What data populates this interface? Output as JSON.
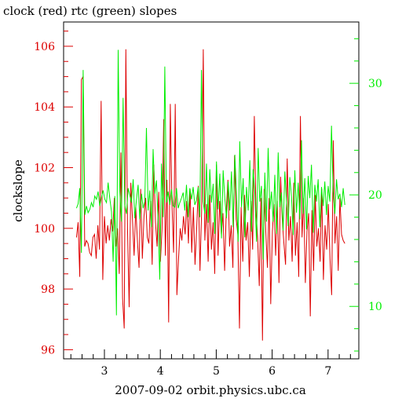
{
  "chart_data": {
    "type": "line",
    "title": "clock (red) rtc (green) slopes",
    "xlabel": "2007-09-02 orbit.physics.ubc.ca",
    "ylabel": "clockslope",
    "xlim": [
      2.27,
      7.55
    ],
    "ylim_left": [
      95.7,
      106.8
    ],
    "ylim_right": [
      5.3,
      35.5
    ],
    "x_ticks": [
      3,
      4,
      5,
      6,
      7
    ],
    "y_ticks_left": [
      96,
      98,
      100,
      102,
      104,
      106
    ],
    "y_ticks_right": [
      10,
      20,
      30
    ],
    "grid": false,
    "colors": {
      "clock": "#dd0000",
      "rtc": "#00ee00",
      "axes": "#000000"
    },
    "x_start": 2.5,
    "x_end": 7.3,
    "series": [
      {
        "axis": "left",
        "color": "#dd0000",
        "values": [
          99.7,
          100.2,
          98.4,
          104.9,
          105.0,
          99.4,
          99.6,
          99.5,
          99.2,
          99.1,
          99.7,
          99.8,
          99.0,
          100.1,
          99.3,
          104.2,
          98.3,
          100.4,
          99.5,
          100.1,
          99.6,
          100.3,
          99.9,
          101.0,
          99.4,
          100.0,
          98.5,
          102.5,
          97.7,
          96.7,
          105.9,
          100.0,
          97.4,
          101.5,
          100.3,
          99.1,
          100.7,
          99.6,
          98.7,
          101.3,
          99.0,
          100.4,
          101.0,
          99.7,
          99.5,
          100.9,
          98.8,
          102.1,
          100.2,
          99.4,
          101.2,
          98.9,
          100.0,
          103.6,
          99.1,
          101.6,
          96.9,
          104.1,
          100.8,
          99.2,
          104.1,
          97.8,
          99.0,
          100.0,
          99.6,
          100.4,
          99.8,
          100.9,
          99.5,
          101.3,
          99.2,
          100.7,
          98.8,
          100.0,
          101.4,
          98.6,
          100.6,
          105.9,
          99.6,
          100.8,
          98.9,
          101.1,
          99.3,
          100.2,
          98.5,
          102.1,
          99.1,
          100.9,
          99.8,
          100.5,
          98.6,
          100.6,
          101.6,
          99.4,
          100.1,
          98.7,
          102.4,
          100.3,
          99.8,
          96.7,
          100.7,
          98.9,
          101.1,
          99.6,
          100.2,
          98.4,
          100.9,
          99.3,
          103.7,
          100.6,
          99.7,
          98.1,
          101.0,
          96.3,
          101.3,
          99.9,
          98.7,
          101.0,
          97.5,
          99.9,
          100.8,
          99.1,
          100.9,
          98.2,
          101.7,
          100.3,
          99.5,
          98.8,
          102.3,
          99.6,
          100.4,
          98.9,
          101.5,
          99.1,
          100.2,
          98.4,
          103.7,
          99.7,
          101.0,
          98.2,
          99.9,
          100.5,
          97.1,
          100.6,
          98.6,
          101.1,
          99.4,
          100.0,
          98.9,
          101.3,
          98.3,
          100.1,
          99.3,
          100.8,
          99.0,
          97.8,
          102.9,
          99.5,
          100.4,
          98.6,
          101.0,
          99.8,
          99.6,
          99.5
        ],
        "note": "clock"
      },
      {
        "axis": "right",
        "color": "#00ee00",
        "values": [
          18.8,
          19.2,
          20.6,
          14.8,
          31.2,
          18.2,
          19.0,
          18.4,
          18.7,
          19.3,
          18.9,
          19.9,
          19.6,
          20.3,
          19.0,
          19.8,
          20.4,
          19.6,
          19.3,
          21.1,
          19.7,
          18.5,
          14.0,
          19.9,
          9.2,
          33.0,
          20.3,
          17.6,
          28.7,
          19.1,
          18.3,
          20.6,
          20.0,
          19.3,
          21.4,
          17.9,
          19.6,
          20.9,
          17.8,
          20.1,
          18.8,
          19.4,
          26.0,
          18.6,
          20.4,
          17.1,
          24.1,
          20.1,
          21.3,
          17.6,
          12.4,
          22.8,
          18.0,
          31.5,
          19.3,
          20.3,
          19.1,
          20.5,
          19.0,
          18.9,
          20.6,
          18.8,
          19.3,
          19.7,
          20.2,
          18.6,
          20.9,
          18.0,
          20.6,
          19.6,
          20.7,
          19.1,
          19.5,
          20.7,
          18.0,
          31.2,
          19.4,
          18.3,
          22.8,
          17.5,
          22.3,
          19.3,
          21.0,
          16.5,
          23.0,
          18.7,
          21.9,
          16.1,
          22.2,
          19.7,
          17.9,
          21.2,
          18.6,
          22.1,
          17.1,
          23.6,
          19.9,
          15.8,
          24.8,
          18.9,
          21.5,
          16.2,
          20.7,
          18.6,
          23.1,
          16.7,
          22.3,
          20.2,
          15.8,
          24.2,
          19.4,
          20.8,
          14.2,
          22.0,
          17.6,
          24.2,
          18.7,
          20.3,
          17.6,
          21.8,
          16.5,
          23.8,
          18.9,
          20.2,
          16.8,
          22.1,
          19.4,
          17.2,
          21.6,
          19.8,
          16.4,
          22.2,
          18.4,
          21.1,
          17.8,
          24.9,
          18.3,
          21.5,
          16.9,
          21.7,
          19.7,
          22.7,
          16.6,
          20.9,
          19.4,
          21.4,
          17.1,
          20.7,
          19.0,
          21.2,
          18.2,
          20.8,
          19.4,
          26.2,
          20.3,
          18.3,
          21.4,
          19.6,
          20.1,
          18.9,
          20.6,
          19.1
        ]
      }
    ]
  }
}
